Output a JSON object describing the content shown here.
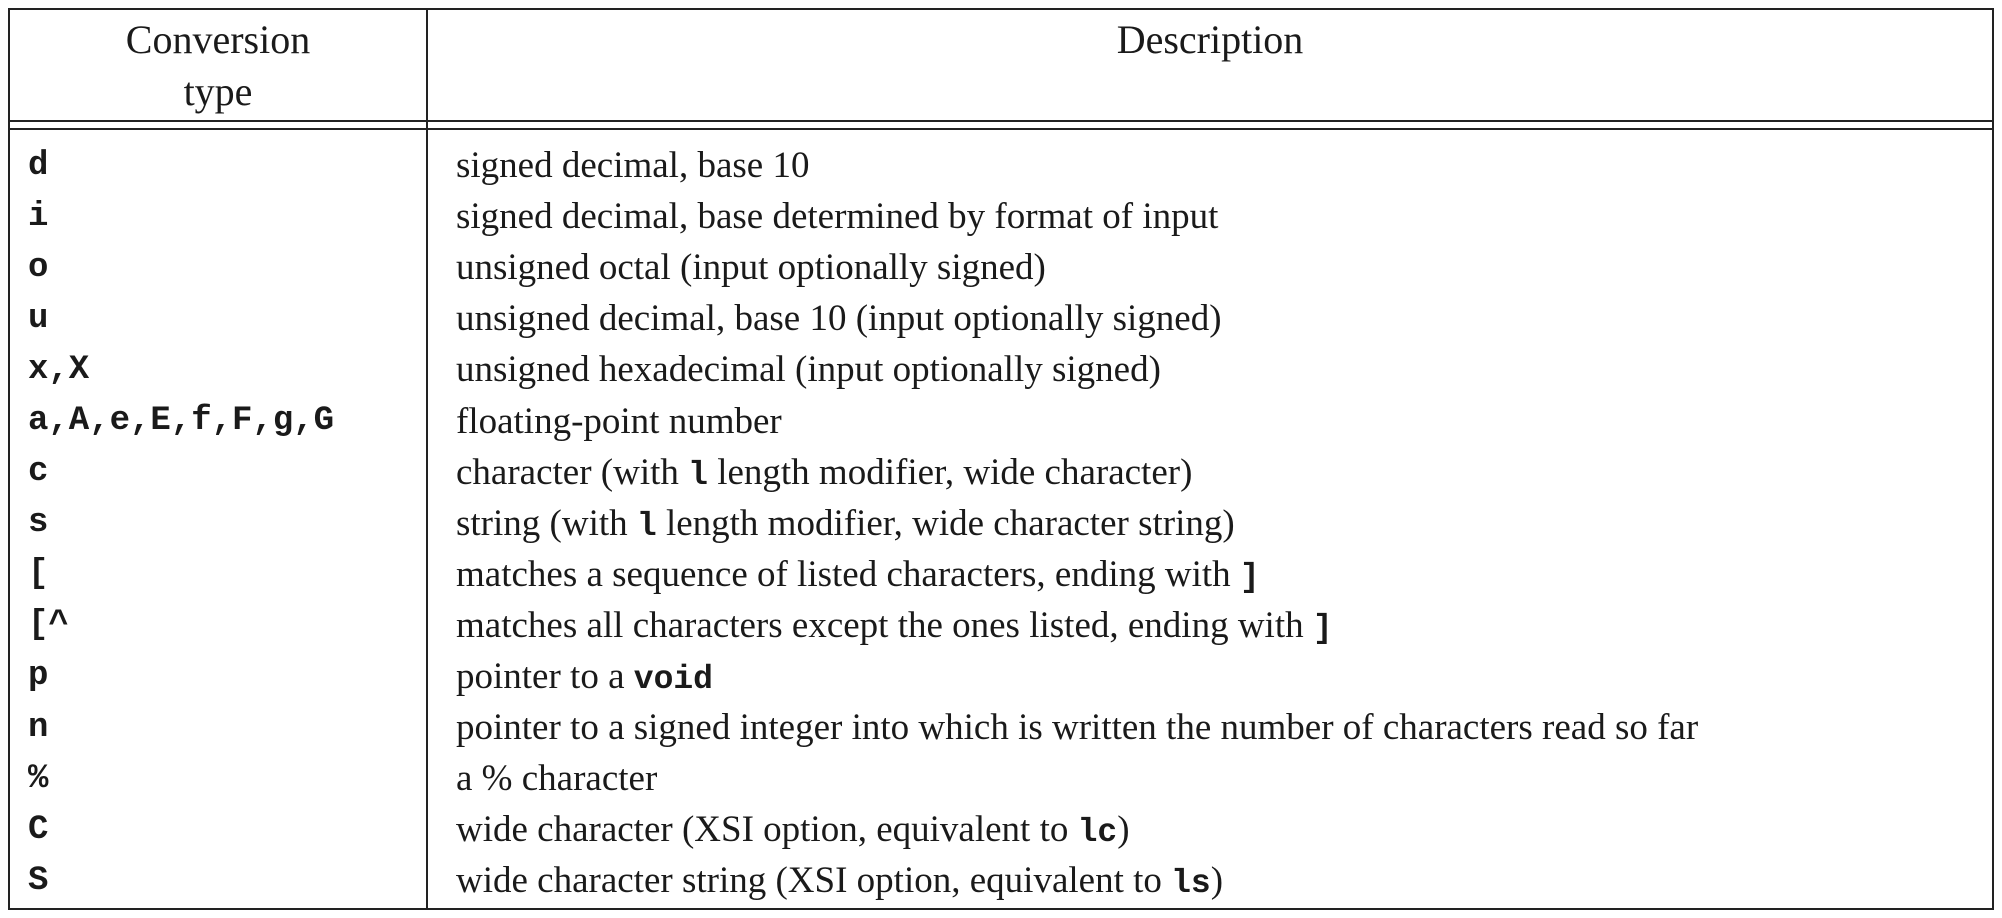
{
  "table": {
    "headers": {
      "conversion_line1": "Conversion",
      "conversion_line2": "type",
      "description": "Description"
    },
    "rows": [
      {
        "type": "d",
        "desc": [
          {
            "t": "signed decimal, base 10"
          }
        ]
      },
      {
        "type": "i",
        "desc": [
          {
            "t": "signed decimal, base determined by format of input"
          }
        ]
      },
      {
        "type": "o",
        "desc": [
          {
            "t": "unsigned octal (input optionally signed)"
          }
        ]
      },
      {
        "type": "u",
        "desc": [
          {
            "t": "unsigned decimal, base 10 (input optionally signed)"
          }
        ]
      },
      {
        "type": "x,X",
        "desc": [
          {
            "t": "unsigned hexadecimal (input optionally signed)"
          }
        ]
      },
      {
        "type": "a,A,e,E,f,F,g,G",
        "desc": [
          {
            "t": "floating-point number"
          }
        ]
      },
      {
        "type": "c",
        "desc": [
          {
            "t": "character (with "
          },
          {
            "t": "l",
            "code": true
          },
          {
            "t": " length modifier, wide character)"
          }
        ]
      },
      {
        "type": "s",
        "desc": [
          {
            "t": "string (with "
          },
          {
            "t": "l",
            "code": true
          },
          {
            "t": " length modifier, wide character string)"
          }
        ]
      },
      {
        "type": "[",
        "desc": [
          {
            "t": "matches a sequence of listed characters, ending with "
          },
          {
            "t": "]",
            "code": true
          }
        ]
      },
      {
        "type": "[^",
        "desc": [
          {
            "t": "matches all characters except the ones listed, ending with "
          },
          {
            "t": "]",
            "code": true
          }
        ]
      },
      {
        "type": "p",
        "desc": [
          {
            "t": "pointer to a "
          },
          {
            "t": "void",
            "code": true
          }
        ]
      },
      {
        "type": "n",
        "desc": [
          {
            "t": "pointer to a signed integer into which is written the number of characters read so far"
          }
        ]
      },
      {
        "type": "%",
        "desc": [
          {
            "t": "a % character"
          }
        ]
      },
      {
        "type": "C",
        "desc": [
          {
            "t": "wide character (XSI option, equivalent to "
          },
          {
            "t": "lc",
            "code": true
          },
          {
            "t": ")"
          }
        ]
      },
      {
        "type": "S",
        "desc": [
          {
            "t": "wide character string (XSI option, equivalent to "
          },
          {
            "t": "ls",
            "code": true
          },
          {
            "t": ")"
          }
        ]
      }
    ]
  }
}
